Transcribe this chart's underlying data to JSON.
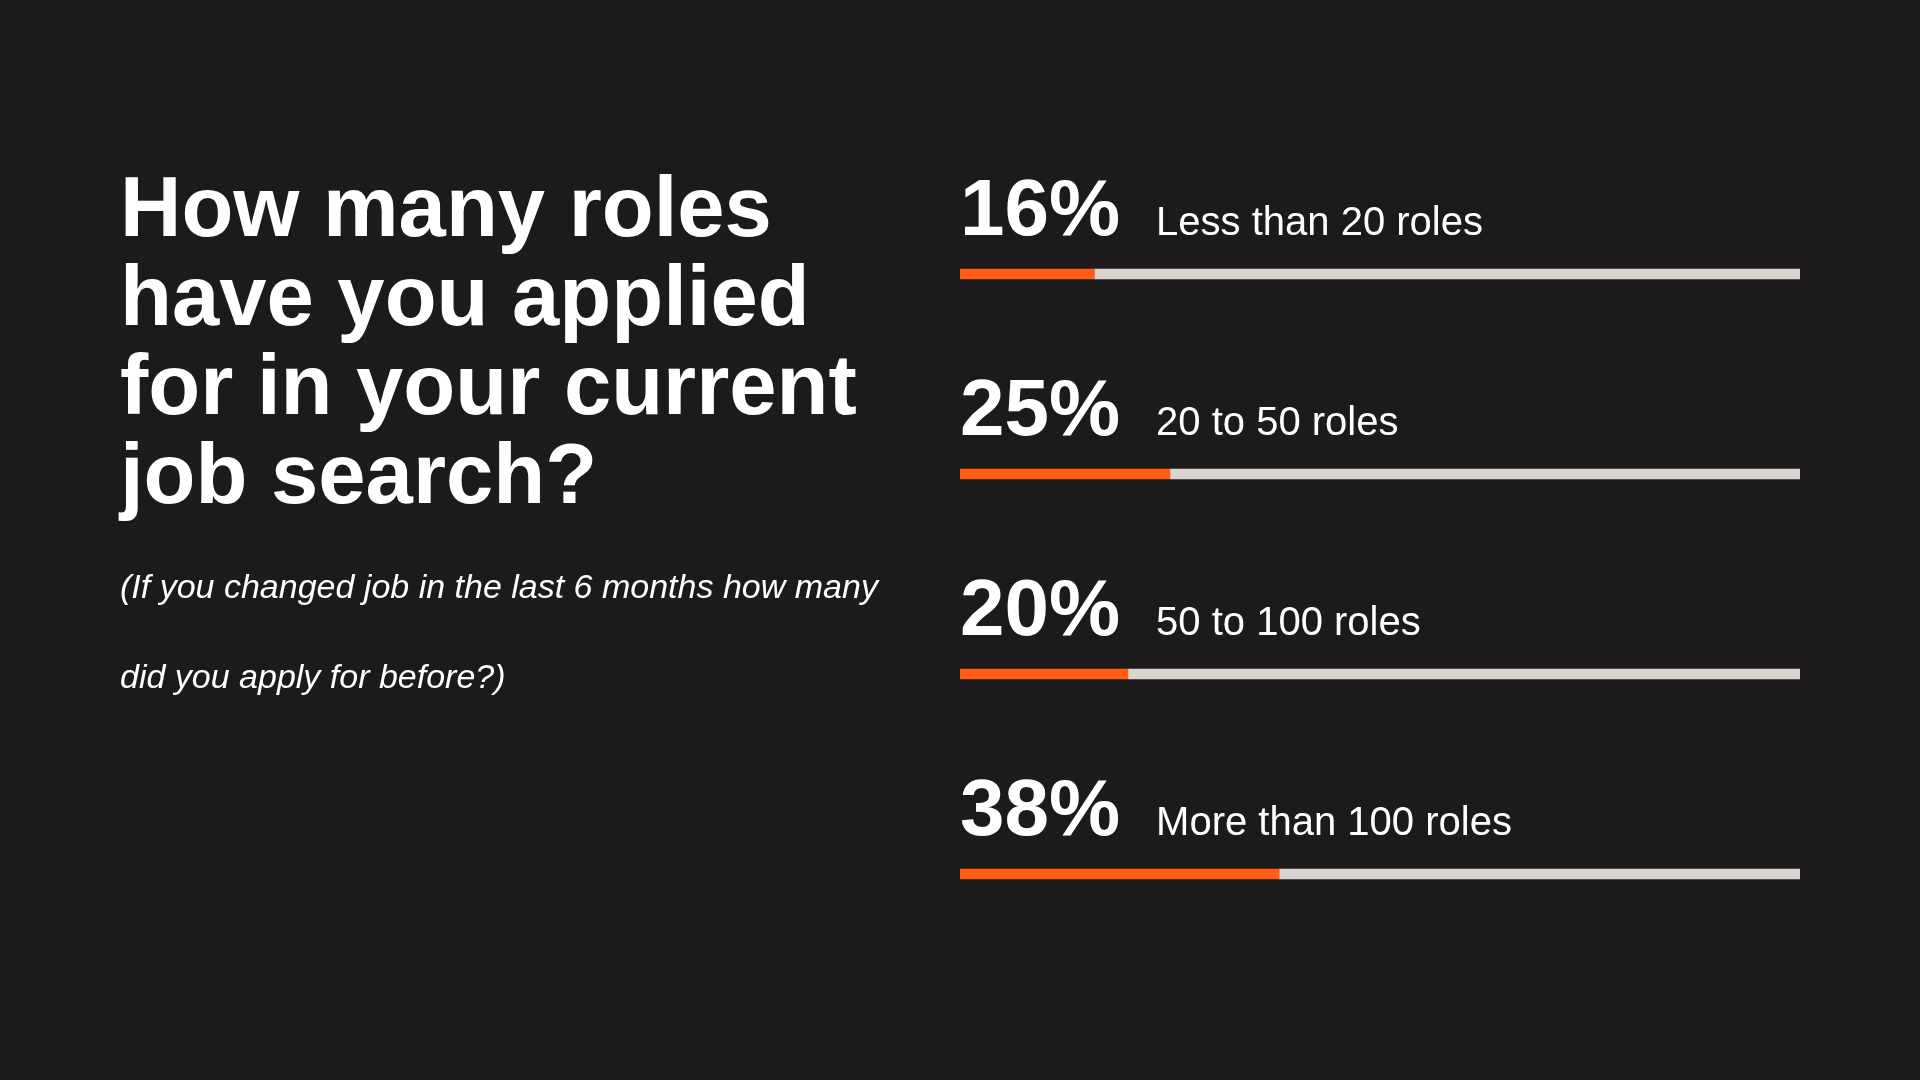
{
  "chart_data": {
    "type": "bar",
    "orientation": "horizontal",
    "stacked": true,
    "title": "How many roles have you applied for in your current job search?",
    "subtitle": "(If you changed job in the last 6 months how many did you apply for before?)",
    "categories": [
      "Less than 20 roles",
      "20 to 50 roles",
      "50 to 100 roles",
      "More than 100 roles"
    ],
    "series": [
      {
        "color": "#ff5f15",
        "values": [
          16,
          25,
          20,
          38
        ],
        "value_labels": [
          "16%",
          "25%",
          "20%",
          "38%"
        ]
      },
      {
        "color": "#d9d4cf",
        "values": [
          84,
          75,
          80,
          62
        ]
      }
    ],
    "xlim": [
      0,
      100
    ],
    "tick_labels": "y"
  }
}
